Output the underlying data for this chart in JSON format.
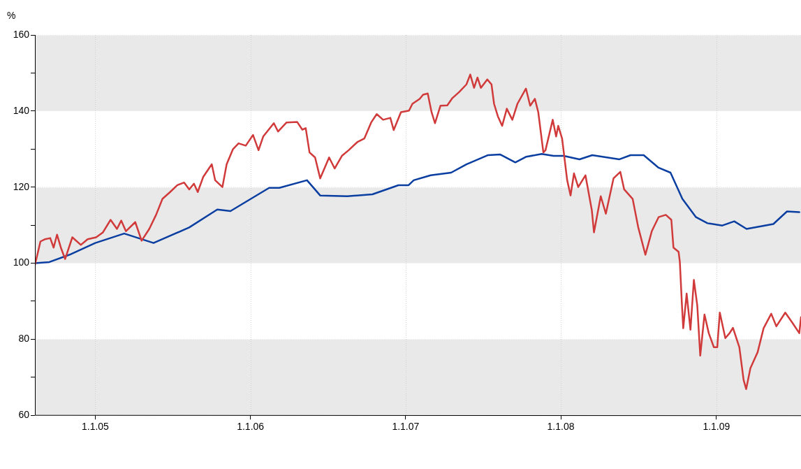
{
  "chart_data": {
    "type": "line",
    "ylabel": "%",
    "xlim": [
      "2004-08-12",
      "2009-07-19"
    ],
    "ylim": [
      60,
      160
    ],
    "xticks": [
      {
        "value": "2005-01-01",
        "label": "1.1.05"
      },
      {
        "value": "2006-01-01",
        "label": "1.1.06"
      },
      {
        "value": "2007-01-01",
        "label": "1.1.07"
      },
      {
        "value": "2008-01-01",
        "label": "1.1.08"
      },
      {
        "value": "2009-01-01",
        "label": "1.1.09"
      }
    ],
    "yticks": [
      60,
      {
        "value": 70,
        "label": null
      },
      80,
      {
        "value": 90,
        "label": null
      },
      100,
      {
        "value": 110,
        "label": null
      },
      120,
      {
        "value": 130,
        "label": null
      },
      140,
      {
        "value": 150,
        "label": null
      },
      160
    ],
    "grid": true,
    "legend": false,
    "series": [
      {
        "color": "#0a3ea0",
        "x": [
          "2004-08-12",
          "2004-09-15",
          "2004-11-01",
          "2005-01-01",
          "2005-03-10",
          "2005-05-18",
          "2005-08-10",
          "2005-10-15",
          "2005-11-15",
          "2006-02-14",
          "2006-03-10",
          "2006-05-14",
          "2006-06-14",
          "2006-08-17",
          "2006-10-15",
          "2006-12-15",
          "2007-01-08",
          "2007-01-20",
          "2007-03-01",
          "2007-04-18",
          "2007-05-24",
          "2007-07-14",
          "2007-08-11",
          "2007-09-16",
          "2007-10-12",
          "2007-11-17",
          "2007-12-15",
          "2008-01-08",
          "2008-02-14",
          "2008-03-15",
          "2008-05-18",
          "2008-06-13",
          "2008-07-14",
          "2008-08-18",
          "2008-09-15",
          "2008-10-13",
          "2008-11-14",
          "2008-12-11",
          "2009-01-15",
          "2009-02-12",
          "2009-03-13",
          "2009-05-15",
          "2009-06-16",
          "2009-07-15"
        ],
        "values": [
          100,
          100.3,
          102.2,
          105.3,
          107.8,
          105.3,
          109.4,
          114.1,
          113.7,
          119.8,
          119.8,
          121.8,
          117.8,
          117.6,
          118.1,
          120.5,
          120.5,
          121.8,
          123.1,
          123.8,
          126,
          128.4,
          128.6,
          126.5,
          128,
          128.7,
          128.2,
          128.2,
          127.3,
          128.4,
          127.3,
          128.4,
          128.4,
          125.1,
          123.8,
          116.9,
          112.1,
          110.5,
          109.9,
          111,
          109,
          110.3,
          113.6,
          113.4
        ]
      },
      {
        "color": "#d13a3a",
        "x": [
          "2004-08-12",
          "2004-08-25",
          "2004-09-05",
          "2004-09-17",
          "2004-09-25",
          "2004-10-03",
          "2004-10-12",
          "2004-10-22",
          "2004-11-08",
          "2004-11-28",
          "2004-12-14",
          "2005-01-03",
          "2005-01-19",
          "2005-02-06",
          "2005-02-21",
          "2005-03-03",
          "2005-03-14",
          "2005-04-05",
          "2005-04-20",
          "2005-05-08",
          "2005-05-24",
          "2005-06-08",
          "2005-06-26",
          "2005-07-13",
          "2005-07-29",
          "2005-08-10",
          "2005-08-21",
          "2005-08-30",
          "2005-09-12",
          "2005-10-02",
          "2005-10-10",
          "2005-10-27",
          "2005-11-06",
          "2005-11-21",
          "2005-12-04",
          "2005-12-21",
          "2006-01-07",
          "2006-01-20",
          "2006-01-31",
          "2006-02-25",
          "2006-03-07",
          "2006-03-27",
          "2006-04-21",
          "2006-05-03",
          "2006-05-11",
          "2006-05-20",
          "2006-06-02",
          "2006-06-14",
          "2006-07-05",
          "2006-07-18",
          "2006-08-04",
          "2006-08-20",
          "2006-09-09",
          "2006-09-26",
          "2006-10-12",
          "2006-10-25",
          "2006-11-09",
          "2006-11-26",
          "2006-12-04",
          "2006-12-21",
          "2007-01-09",
          "2007-01-17",
          "2007-02-03",
          "2007-02-11",
          "2007-02-22",
          "2007-03-03",
          "2007-03-11",
          "2007-03-24",
          "2007-04-09",
          "2007-04-21",
          "2007-05-07",
          "2007-05-24",
          "2007-06-02",
          "2007-06-11",
          "2007-06-19",
          "2007-06-27",
          "2007-07-12",
          "2007-07-22",
          "2007-07-28",
          "2007-08-06",
          "2007-08-16",
          "2007-08-27",
          "2007-09-09",
          "2007-09-21",
          "2007-10-11",
          "2007-10-21",
          "2007-11-01",
          "2007-11-09",
          "2007-11-21",
          "2007-11-26",
          "2007-12-13",
          "2007-12-21",
          "2007-12-26",
          "2008-01-04",
          "2008-01-16",
          "2008-01-24",
          "2008-02-01",
          "2008-02-11",
          "2008-02-28",
          "2008-03-14",
          "2008-03-19",
          "2008-04-04",
          "2008-04-16",
          "2008-05-04",
          "2008-05-20",
          "2008-05-29",
          "2008-06-18",
          "2008-07-01",
          "2008-07-18",
          "2008-08-02",
          "2008-08-18",
          "2008-09-04",
          "2008-09-17",
          "2008-09-22",
          "2008-10-04",
          "2008-10-07",
          "2008-10-12",
          "2008-10-15",
          "2008-10-23",
          "2008-11-01",
          "2008-11-09",
          "2008-11-17",
          "2008-11-24",
          "2008-12-04",
          "2008-12-14",
          "2008-12-26",
          "2009-01-03",
          "2009-01-09",
          "2009-01-22",
          "2009-02-01",
          "2009-02-09",
          "2009-02-24",
          "2009-03-06",
          "2009-03-12",
          "2009-03-22",
          "2009-04-08",
          "2009-04-22",
          "2009-05-10",
          "2009-05-22",
          "2009-06-12",
          "2009-06-29",
          "2009-07-15",
          "2009-07-19"
        ],
        "values": [
          99.5,
          105.7,
          106.3,
          106.6,
          104.1,
          107.5,
          104.1,
          101.1,
          106.8,
          104.8,
          106.3,
          106.8,
          108.1,
          111.4,
          109,
          111.2,
          108.4,
          110.8,
          105.9,
          109,
          112.7,
          116.9,
          118.7,
          120.5,
          121.2,
          119.4,
          120.9,
          118.7,
          122.7,
          126,
          121.8,
          120,
          126,
          130,
          131.5,
          130.9,
          133.7,
          129.7,
          133.3,
          136.8,
          134.6,
          137,
          137.1,
          135.1,
          135.5,
          129.1,
          127.8,
          122.3,
          127.8,
          124.9,
          128.2,
          129.7,
          131.8,
          132.8,
          137,
          139.2,
          137.7,
          138.2,
          135,
          139.7,
          140.1,
          141.9,
          143.2,
          144.3,
          144.6,
          139.7,
          136.8,
          141.4,
          141.5,
          143.4,
          145,
          147,
          149.6,
          146.1,
          148.8,
          146.1,
          148.3,
          147,
          141.9,
          138.6,
          136.1,
          140.6,
          137.7,
          141.9,
          145.9,
          141.4,
          143.2,
          139.7,
          129.1,
          129.7,
          137.7,
          133.3,
          136.1,
          132.8,
          121.8,
          117.8,
          123.6,
          120,
          123.1,
          113.9,
          108.1,
          117.6,
          113,
          122.3,
          124,
          119.4,
          116.9,
          109.5,
          102.2,
          108.4,
          112.1,
          112.7,
          111.4,
          104.1,
          103,
          100.4,
          88.9,
          82.9,
          92,
          82.5,
          95.6,
          88.9,
          75.7,
          86.5,
          81.6,
          77.9,
          77.9,
          87,
          80.3,
          81.6,
          83,
          77.9,
          69.3,
          66.9,
          72.4,
          76.6,
          82.9,
          86.7,
          83.4,
          87,
          84.3,
          81.6,
          85.8
        ]
      }
    ]
  }
}
